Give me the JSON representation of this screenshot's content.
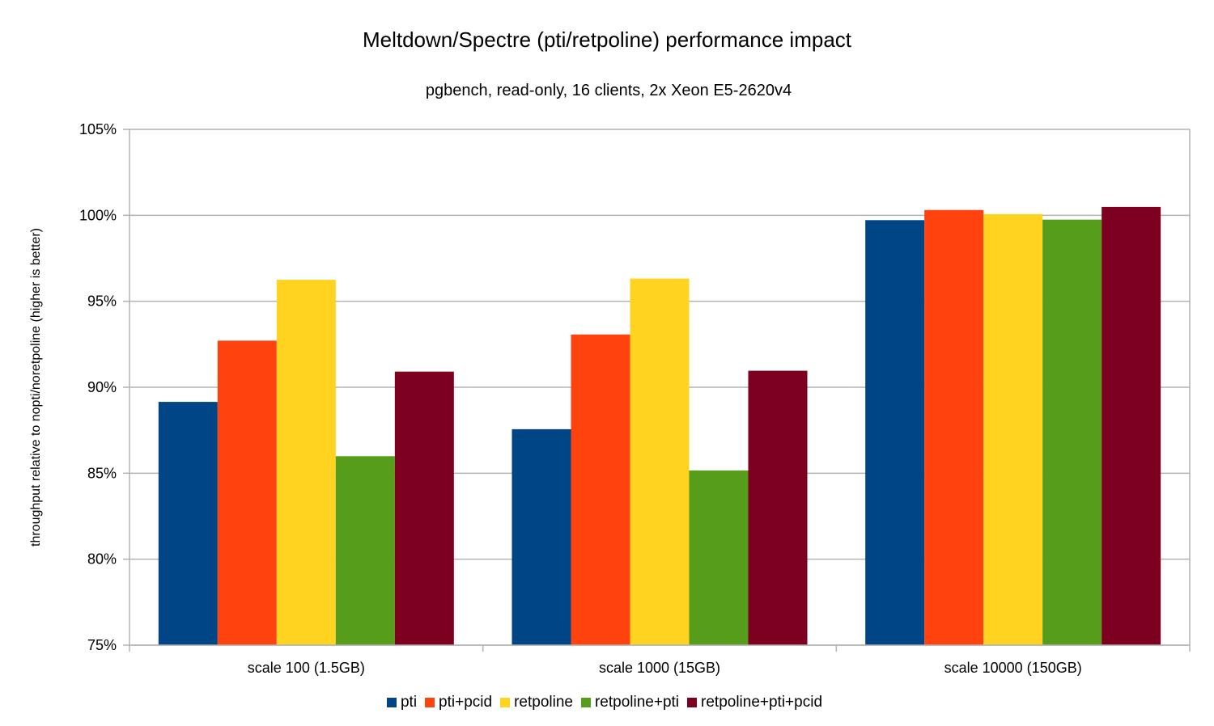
{
  "chart_data": {
    "type": "bar",
    "title": "Meltdown/Spectre (pti/retpoline) performance impact",
    "subtitle": "pgbench, read-only, 16 clients, 2x Xeon E5-2620v4",
    "xlabel": "",
    "ylabel": "throughput relative to nopti/noretpoline (higher is better)",
    "ylim": [
      75,
      105
    ],
    "yticks": [
      75,
      80,
      85,
      90,
      95,
      100,
      105
    ],
    "ytick_labels": [
      "75%",
      "80%",
      "85%",
      "90%",
      "95%",
      "100%",
      "105%"
    ],
    "grid": true,
    "legend_position": "bottom",
    "categories": [
      "scale 100 (1.5GB)",
      "scale 1000 (15GB)",
      "scale 10000 (150GB)"
    ],
    "series": [
      {
        "name": "pti",
        "color": "#004586",
        "values": [
          89.15,
          87.56,
          99.72
        ]
      },
      {
        "name": "pti+pcid",
        "color": "#ff420e",
        "values": [
          92.71,
          93.07,
          100.31
        ]
      },
      {
        "name": "retpoline",
        "color": "#ffd320",
        "values": [
          96.25,
          96.32,
          100.07
        ]
      },
      {
        "name": "retpoline+pti",
        "color": "#579d1c",
        "values": [
          85.99,
          85.16,
          99.75
        ]
      },
      {
        "name": "retpoline+pti+pcid",
        "color": "#7e0021",
        "values": [
          90.91,
          90.96,
          100.49
        ]
      }
    ]
  }
}
